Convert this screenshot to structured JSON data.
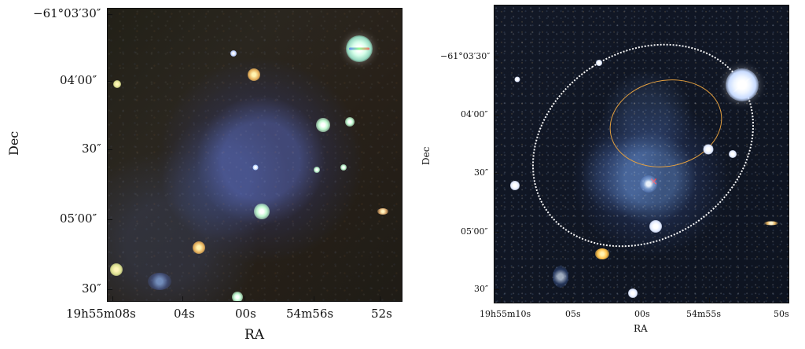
{
  "left_panel": {
    "y_axis_label": "Dec",
    "x_axis_label": "RA",
    "y_ticks": [
      "−61°03′30″",
      "04′00″",
      "30″",
      "05′00″",
      "30″"
    ],
    "x_ticks": [
      "19h55m08s",
      "04s",
      "00s",
      "54m56s",
      "52s"
    ]
  },
  "right_panel": {
    "y_axis_label": "Dec",
    "x_axis_label": "RA",
    "y_ticks": [
      "−61°03′30″",
      "04′00″",
      "30″",
      "05′00″",
      "30″"
    ],
    "x_ticks": [
      "19h55m10s",
      "05s",
      "00s",
      "54m55s",
      "50s"
    ]
  },
  "colors": {
    "axis": "#111111",
    "white_ellipse": "#f7f7f7",
    "orange_ellipse": "#e4a040",
    "marker": "#ff3030"
  }
}
